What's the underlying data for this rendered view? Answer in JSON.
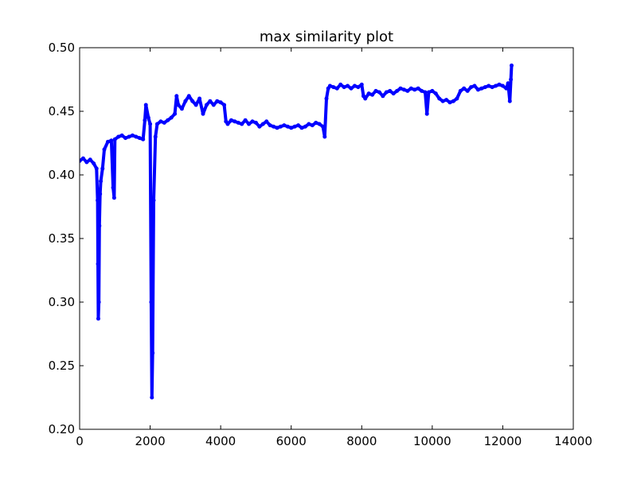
{
  "chart_data": {
    "type": "line",
    "title": "max similarity plot",
    "xlabel": "",
    "ylabel": "",
    "xlim": [
      0,
      14000
    ],
    "ylim": [
      0.2,
      0.5
    ],
    "x_ticks": [
      0,
      2000,
      4000,
      6000,
      8000,
      10000,
      12000,
      14000
    ],
    "x_tick_labels": [
      "0",
      "2000",
      "4000",
      "6000",
      "8000",
      "10000",
      "12000",
      "14000"
    ],
    "y_ticks": [
      0.2,
      0.25,
      0.3,
      0.35,
      0.4,
      0.45,
      0.5
    ],
    "y_tick_labels": [
      "0.20",
      "0.25",
      "0.30",
      "0.35",
      "0.40",
      "0.45",
      "0.50"
    ],
    "grid": false,
    "marker": "circle",
    "series": [
      {
        "color": "#0000ff",
        "points": [
          [
            0,
            0.411
          ],
          [
            100,
            0.413
          ],
          [
            200,
            0.41
          ],
          [
            300,
            0.412
          ],
          [
            400,
            0.409
          ],
          [
            480,
            0.405
          ],
          [
            510,
            0.38
          ],
          [
            520,
            0.33
          ],
          [
            530,
            0.287
          ],
          [
            545,
            0.3
          ],
          [
            560,
            0.36
          ],
          [
            580,
            0.385
          ],
          [
            600,
            0.395
          ],
          [
            650,
            0.405
          ],
          [
            700,
            0.42
          ],
          [
            800,
            0.426
          ],
          [
            900,
            0.427
          ],
          [
            950,
            0.39
          ],
          [
            980,
            0.382
          ],
          [
            1000,
            0.428
          ],
          [
            1100,
            0.43
          ],
          [
            1200,
            0.431
          ],
          [
            1300,
            0.429
          ],
          [
            1400,
            0.43
          ],
          [
            1500,
            0.431
          ],
          [
            1600,
            0.43
          ],
          [
            1700,
            0.429
          ],
          [
            1800,
            0.428
          ],
          [
            1850,
            0.443
          ],
          [
            1880,
            0.455
          ],
          [
            1950,
            0.445
          ],
          [
            2000,
            0.44
          ],
          [
            2030,
            0.3
          ],
          [
            2050,
            0.225
          ],
          [
            2070,
            0.26
          ],
          [
            2100,
            0.38
          ],
          [
            2150,
            0.43
          ],
          [
            2200,
            0.44
          ],
          [
            2300,
            0.442
          ],
          [
            2400,
            0.441
          ],
          [
            2500,
            0.443
          ],
          [
            2600,
            0.445
          ],
          [
            2700,
            0.448
          ],
          [
            2750,
            0.462
          ],
          [
            2800,
            0.455
          ],
          [
            2900,
            0.452
          ],
          [
            3000,
            0.458
          ],
          [
            3100,
            0.462
          ],
          [
            3200,
            0.458
          ],
          [
            3300,
            0.455
          ],
          [
            3400,
            0.46
          ],
          [
            3500,
            0.448
          ],
          [
            3600,
            0.455
          ],
          [
            3700,
            0.458
          ],
          [
            3800,
            0.455
          ],
          [
            3900,
            0.458
          ],
          [
            4000,
            0.457
          ],
          [
            4100,
            0.455
          ],
          [
            4150,
            0.442
          ],
          [
            4200,
            0.44
          ],
          [
            4300,
            0.443
          ],
          [
            4400,
            0.442
          ],
          [
            4500,
            0.441
          ],
          [
            4600,
            0.44
          ],
          [
            4700,
            0.443
          ],
          [
            4800,
            0.44
          ],
          [
            4900,
            0.442
          ],
          [
            5000,
            0.441
          ],
          [
            5100,
            0.438
          ],
          [
            5200,
            0.44
          ],
          [
            5300,
            0.442
          ],
          [
            5400,
            0.439
          ],
          [
            5500,
            0.438
          ],
          [
            5600,
            0.437
          ],
          [
            5700,
            0.438
          ],
          [
            5800,
            0.439
          ],
          [
            5900,
            0.438
          ],
          [
            6000,
            0.437
          ],
          [
            6100,
            0.438
          ],
          [
            6200,
            0.439
          ],
          [
            6300,
            0.437
          ],
          [
            6400,
            0.438
          ],
          [
            6500,
            0.44
          ],
          [
            6600,
            0.439
          ],
          [
            6700,
            0.441
          ],
          [
            6800,
            0.44
          ],
          [
            6900,
            0.438
          ],
          [
            6950,
            0.43
          ],
          [
            7000,
            0.46
          ],
          [
            7050,
            0.468
          ],
          [
            7100,
            0.47
          ],
          [
            7200,
            0.469
          ],
          [
            7300,
            0.468
          ],
          [
            7400,
            0.471
          ],
          [
            7500,
            0.469
          ],
          [
            7600,
            0.47
          ],
          [
            7700,
            0.468
          ],
          [
            7800,
            0.47
          ],
          [
            7900,
            0.469
          ],
          [
            8000,
            0.471
          ],
          [
            8050,
            0.462
          ],
          [
            8100,
            0.46
          ],
          [
            8200,
            0.464
          ],
          [
            8300,
            0.463
          ],
          [
            8400,
            0.466
          ],
          [
            8500,
            0.465
          ],
          [
            8600,
            0.462
          ],
          [
            8700,
            0.465
          ],
          [
            8800,
            0.466
          ],
          [
            8900,
            0.464
          ],
          [
            9000,
            0.466
          ],
          [
            9100,
            0.468
          ],
          [
            9200,
            0.467
          ],
          [
            9300,
            0.466
          ],
          [
            9400,
            0.468
          ],
          [
            9500,
            0.467
          ],
          [
            9600,
            0.468
          ],
          [
            9700,
            0.466
          ],
          [
            9800,
            0.465
          ],
          [
            9850,
            0.448
          ],
          [
            9900,
            0.465
          ],
          [
            10000,
            0.466
          ],
          [
            10100,
            0.464
          ],
          [
            10200,
            0.46
          ],
          [
            10300,
            0.458
          ],
          [
            10400,
            0.459
          ],
          [
            10500,
            0.457
          ],
          [
            10600,
            0.458
          ],
          [
            10700,
            0.46
          ],
          [
            10800,
            0.466
          ],
          [
            10900,
            0.468
          ],
          [
            11000,
            0.466
          ],
          [
            11100,
            0.469
          ],
          [
            11200,
            0.47
          ],
          [
            11300,
            0.467
          ],
          [
            11400,
            0.468
          ],
          [
            11500,
            0.469
          ],
          [
            11600,
            0.47
          ],
          [
            11700,
            0.469
          ],
          [
            11800,
            0.47
          ],
          [
            11900,
            0.471
          ],
          [
            12000,
            0.47
          ],
          [
            12100,
            0.468
          ],
          [
            12150,
            0.472
          ],
          [
            12200,
            0.458
          ],
          [
            12230,
            0.475
          ],
          [
            12250,
            0.486
          ]
        ]
      }
    ]
  }
}
